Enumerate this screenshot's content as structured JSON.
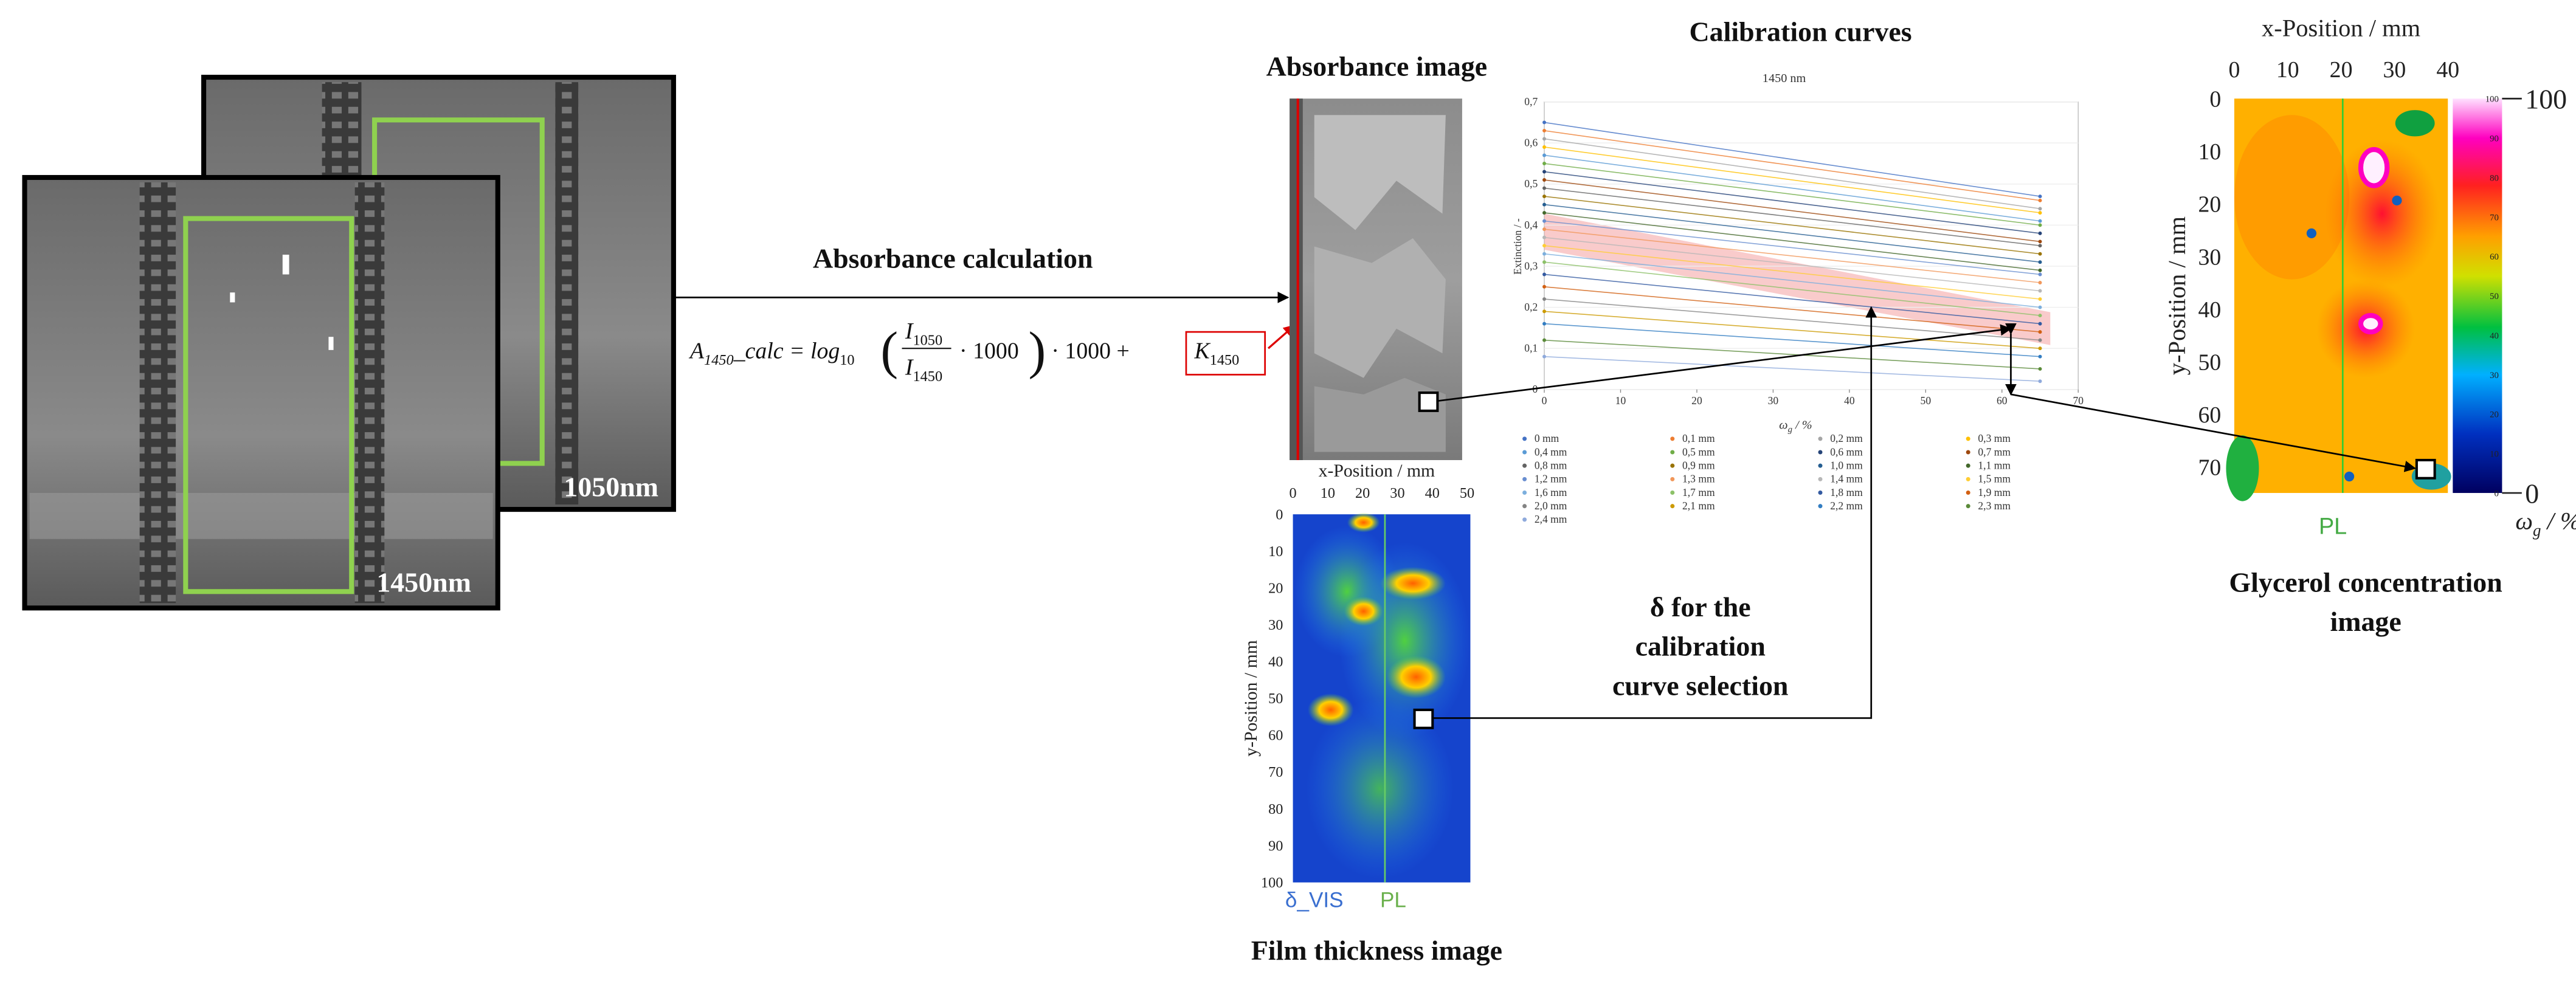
{
  "cameras": {
    "back_label": "1050nm",
    "front_label": "1450nm"
  },
  "absorbance_calculation": {
    "label": "Absorbance calculation",
    "formula": {
      "lhs": "A",
      "lhs_sub": "1450",
      "lhs_rest": "_calc = log",
      "log_sub": "10",
      "open": "(",
      "num": "I",
      "num_sub": "1050",
      "den": "I",
      "den_sub": "1450",
      "mid": "· 1000",
      "close": ")",
      "tail": "· 1000 +",
      "k": "K",
      "k_sub": "1450"
    }
  },
  "absorbance_image": {
    "title": "Absorbance image"
  },
  "calibration_chart": {
    "section_title": "Calibration curves",
    "type": "line",
    "title": "1450 nm",
    "x_label": {
      "symbol": "ω",
      "sub": "g",
      "rest": " / %"
    },
    "y_label": "Extinction / -",
    "x": [
      0,
      65
    ],
    "xlim": [
      0,
      70
    ],
    "ylim": [
      0,
      0.7
    ],
    "xticks": [
      0,
      10,
      20,
      30,
      40,
      50,
      60,
      70
    ],
    "yticks": [
      0,
      {
        "value": 0.1,
        "label": "0,1"
      },
      {
        "value": 0.2,
        "label": "0,2"
      },
      {
        "value": 0.3,
        "label": "0,3"
      },
      {
        "value": 0.4,
        "label": "0,4"
      },
      {
        "value": 0.5,
        "label": "0,5"
      },
      {
        "value": 0.6,
        "label": "0,6"
      },
      {
        "value": 0.7,
        "label": "0,7"
      }
    ],
    "series": [
      {
        "name": "0 mm",
        "color": "#4472c4",
        "values": [
          0.65,
          0.47
        ]
      },
      {
        "name": "0,1 mm",
        "color": "#ed7d31",
        "values": [
          0.63,
          0.46
        ]
      },
      {
        "name": "0,2 mm",
        "color": "#a5a5a5",
        "values": [
          0.61,
          0.44
        ]
      },
      {
        "name": "0,3 mm",
        "color": "#ffc000",
        "values": [
          0.59,
          0.43
        ]
      },
      {
        "name": "0,4 mm",
        "color": "#5b9bd5",
        "values": [
          0.57,
          0.41
        ]
      },
      {
        "name": "0,5 mm",
        "color": "#70ad47",
        "values": [
          0.55,
          0.4
        ]
      },
      {
        "name": "0,6 mm",
        "color": "#264478",
        "values": [
          0.53,
          0.38
        ]
      },
      {
        "name": "0,7 mm",
        "color": "#9e480e",
        "values": [
          0.51,
          0.36
        ]
      },
      {
        "name": "0,8 mm",
        "color": "#636363",
        "values": [
          0.49,
          0.35
        ]
      },
      {
        "name": "0,9 mm",
        "color": "#997300",
        "values": [
          0.47,
          0.33
        ]
      },
      {
        "name": "1,0 mm",
        "color": "#255e91",
        "values": [
          0.45,
          0.31
        ]
      },
      {
        "name": "1,1 mm",
        "color": "#43682b",
        "values": [
          0.43,
          0.29
        ]
      },
      {
        "name": "1,2 mm",
        "color": "#698ed0",
        "values": [
          0.41,
          0.28
        ]
      },
      {
        "name": "1,3 mm",
        "color": "#f1975a",
        "values": [
          0.39,
          0.26
        ]
      },
      {
        "name": "1,4 mm",
        "color": "#b7b7b7",
        "values": [
          0.37,
          0.24
        ]
      },
      {
        "name": "1,5 mm",
        "color": "#ffcd33",
        "values": [
          0.35,
          0.22
        ]
      },
      {
        "name": "1,6 mm",
        "color": "#7cafdd",
        "values": [
          0.33,
          0.2
        ]
      },
      {
        "name": "1,7 mm",
        "color": "#8cc168",
        "values": [
          0.31,
          0.18
        ]
      },
      {
        "name": "1,8 mm",
        "color": "#335aa1",
        "values": [
          0.28,
          0.16
        ]
      },
      {
        "name": "1,9 mm",
        "color": "#d26012",
        "values": [
          0.25,
          0.14
        ]
      },
      {
        "name": "2,0 mm",
        "color": "#848484",
        "values": [
          0.22,
          0.12
        ]
      },
      {
        "name": "2,1 mm",
        "color": "#cc9a00",
        "values": [
          0.19,
          0.1
        ]
      },
      {
        "name": "2,2 mm",
        "color": "#327dc2",
        "values": [
          0.16,
          0.08
        ]
      },
      {
        "name": "2,3 mm",
        "color": "#5a8a39",
        "values": [
          0.12,
          0.05
        ]
      },
      {
        "name": "2,4 mm",
        "color": "#8faadc",
        "values": [
          0.08,
          0.02
        ]
      }
    ]
  },
  "film_thickness_image": {
    "title": "Film thickness image",
    "x_label": "x-Position / mm",
    "y_label": "y-Position / mm",
    "xlim": [
      0,
      50
    ],
    "ylim": [
      0,
      100
    ],
    "xticks": [
      0,
      10,
      20,
      30,
      40,
      50
    ],
    "yticks": [
      0,
      10,
      20,
      30,
      40,
      50,
      60,
      70,
      80,
      90,
      100
    ],
    "legend_label": "δ_VIS",
    "line_label": "PL"
  },
  "selection_note": {
    "lines": [
      "δ  for the",
      "calibration",
      "curve selection"
    ]
  },
  "glycerol_image": {
    "title_lines": [
      "Glycerol concentration",
      "image"
    ],
    "x_label": "x-Position / mm",
    "y_label": "y-Position / mm",
    "xlim": [
      0,
      40
    ],
    "ylim": [
      0,
      75
    ],
    "xticks": [
      0,
      10,
      20,
      30,
      40
    ],
    "yticks": [
      0,
      10,
      20,
      30,
      40,
      50,
      60,
      70
    ],
    "line_label": "PL",
    "colorbar": {
      "lim": [
        0,
        100
      ],
      "ticks": [
        0,
        10,
        20,
        30,
        40,
        50,
        60,
        70,
        80,
        90,
        100
      ],
      "max_label": "100",
      "min_label": "0",
      "unit_label": {
        "symbol": "ω",
        "sub": "g",
        "rest": " / %"
      }
    }
  }
}
